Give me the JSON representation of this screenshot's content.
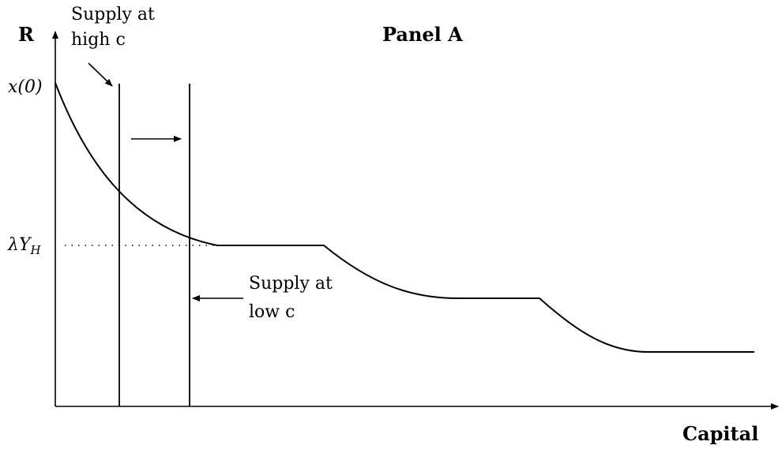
{
  "title": "Panel A",
  "axes": {
    "y_label": "R",
    "x_label": "Capital",
    "y_tick_top": "x(0)",
    "y_tick_lambda": "λ",
    "y_tick_Y": "Y",
    "y_tick_sub": "H"
  },
  "annotations": {
    "high_c_line1": "Supply at",
    "high_c_line2": "high c",
    "low_c_line1": "Supply at",
    "low_c_line2": "low c"
  }
}
